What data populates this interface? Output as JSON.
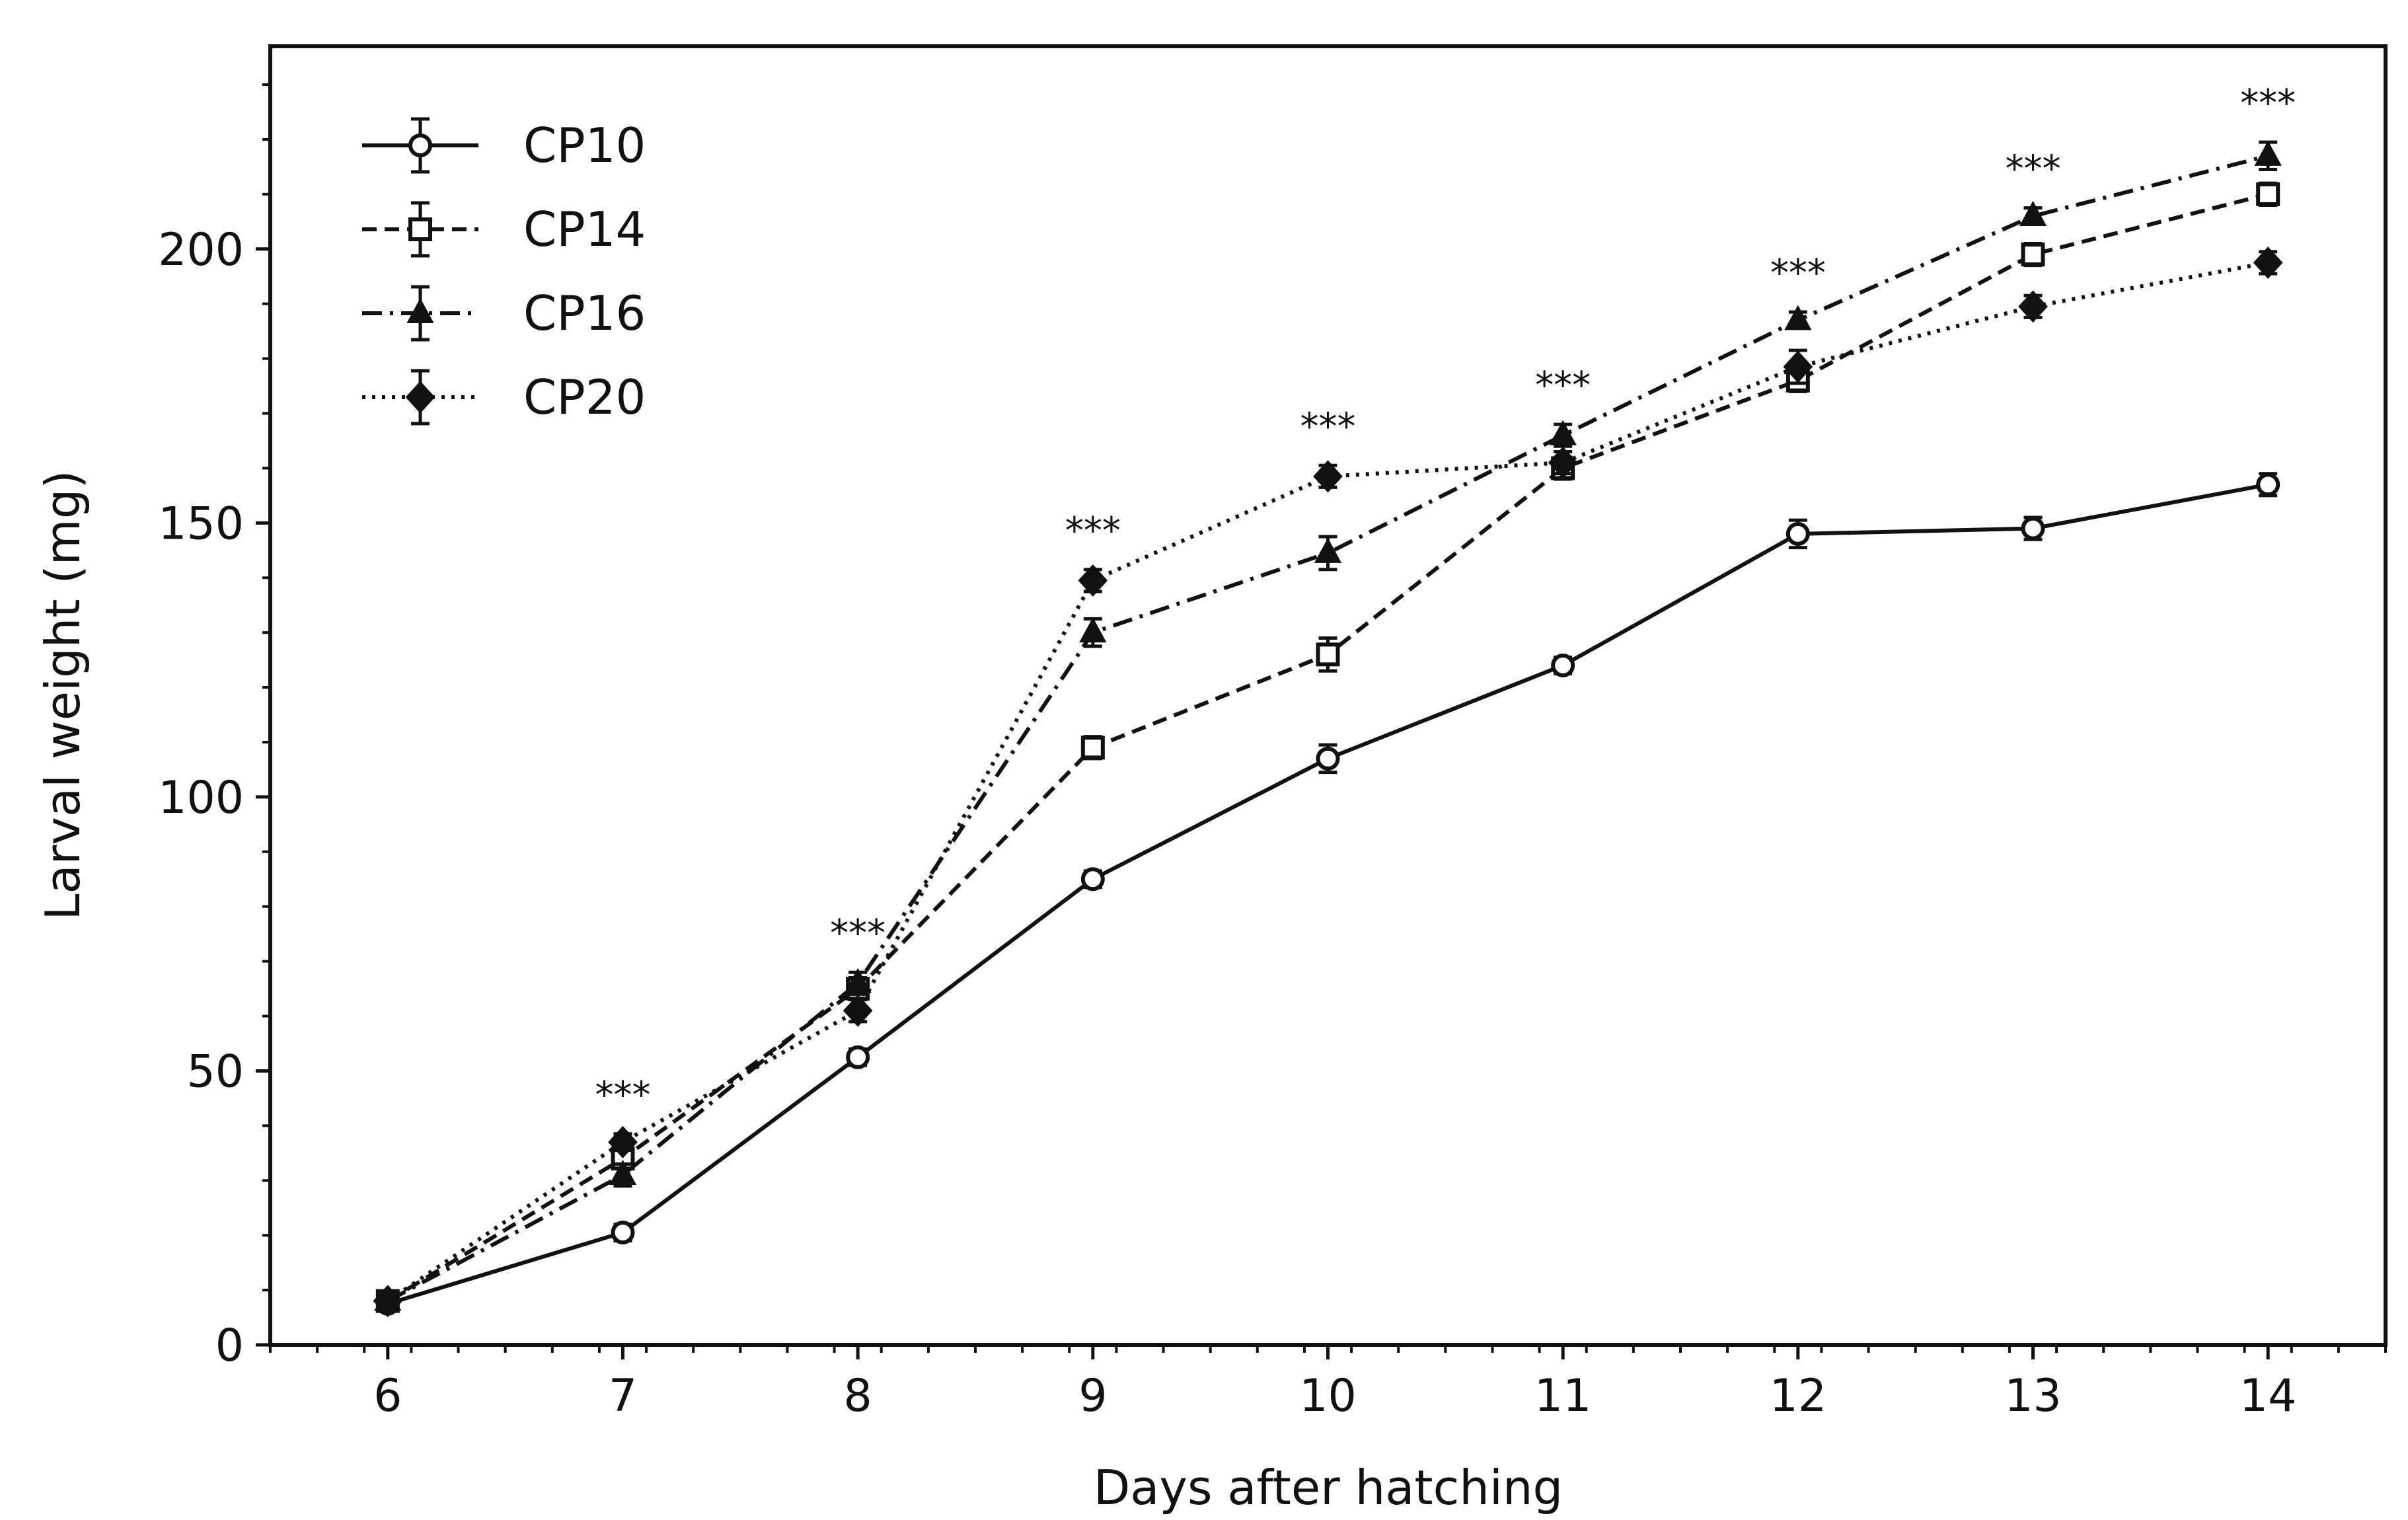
{
  "chart_data": {
    "type": "line",
    "title": "",
    "xlabel": "Days after hatching",
    "ylabel": "Larval weight (mg)",
    "x": [
      6,
      7,
      8,
      9,
      10,
      11,
      12,
      13,
      14
    ],
    "xlim": [
      5.5,
      14.5
    ],
    "ylim": [
      0,
      237
    ],
    "xticks": [
      "6",
      "7",
      "8",
      "9",
      "10",
      "11",
      "12",
      "13",
      "14"
    ],
    "yticks": [
      "0",
      "50",
      "100",
      "150",
      "200"
    ],
    "ytick_values": [
      0,
      50,
      100,
      150,
      200
    ],
    "grid": false,
    "legend_position": "top-left",
    "series": [
      {
        "name": "CP10",
        "values": [
          7.5,
          20.5,
          52.5,
          85,
          107,
          124,
          148,
          149,
          157
        ],
        "errors": [
          1,
          1.5,
          1.5,
          1.5,
          2.5,
          1.5,
          2.5,
          2,
          2
        ],
        "marker": "circle-open",
        "line": "solid"
      },
      {
        "name": "CP14",
        "values": [
          8,
          34,
          65,
          109,
          126,
          160,
          176,
          199,
          210
        ],
        "errors": [
          1,
          1.5,
          2,
          2,
          3,
          2,
          2,
          2,
          2
        ],
        "marker": "square-open",
        "line": "dashed"
      },
      {
        "name": "CP16",
        "values": [
          8,
          31,
          66,
          130,
          144.5,
          166,
          187,
          206,
          217
        ],
        "errors": [
          1,
          2,
          2,
          2.5,
          3,
          2,
          1.5,
          1.5,
          2.5
        ],
        "marker": "triangle-filled",
        "line": "dashdot"
      },
      {
        "name": "CP20",
        "values": [
          8,
          37,
          61,
          139.5,
          158.5,
          161,
          178.5,
          189.5,
          197.5
        ],
        "errors": [
          1,
          1.5,
          2,
          2,
          2,
          2,
          3,
          2,
          2
        ],
        "marker": "diamond-filled",
        "line": "dotted"
      }
    ],
    "annotations": [
      {
        "x": 7,
        "text": "***"
      },
      {
        "x": 8,
        "text": "***"
      },
      {
        "x": 9,
        "text": "***"
      },
      {
        "x": 10,
        "text": "***"
      },
      {
        "x": 11,
        "text": "***"
      },
      {
        "x": 12,
        "text": "***"
      },
      {
        "x": 13,
        "text": "***"
      },
      {
        "x": 14,
        "text": "***"
      }
    ]
  }
}
